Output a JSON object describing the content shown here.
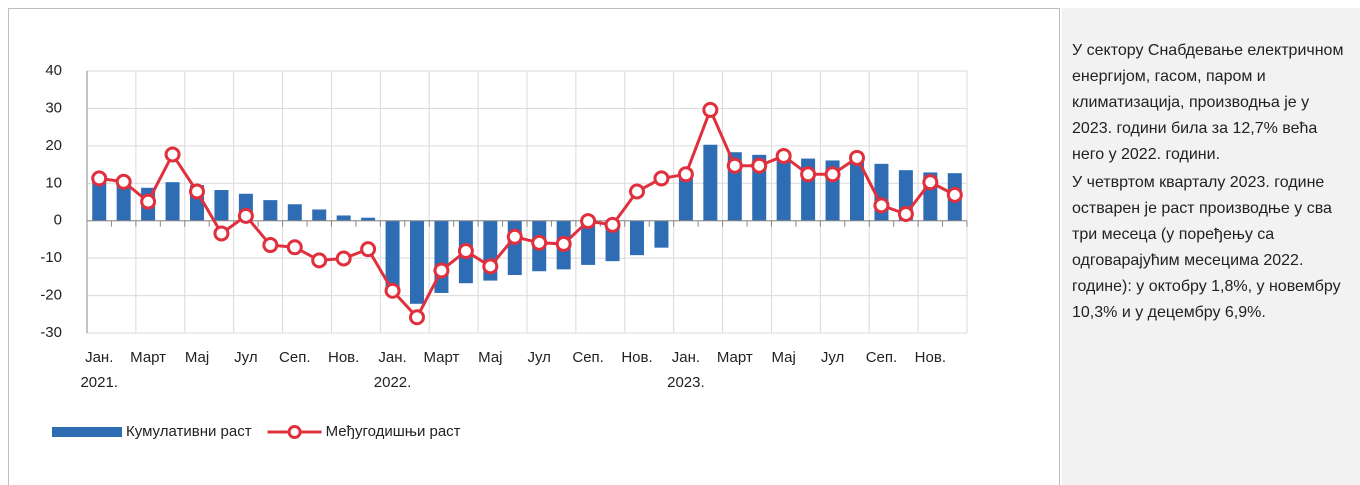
{
  "chart_data": {
    "type": "bar-line",
    "categories": [
      "Јан.",
      null,
      "Март",
      null,
      "Мај",
      null,
      "Јул",
      null,
      "Сеп.",
      null,
      "Нов.",
      null,
      "Јан.",
      null,
      "Март",
      null,
      "Мај",
      null,
      "Јул",
      null,
      "Сеп.",
      null,
      "Нов.",
      null,
      "Јан.",
      null,
      "Март",
      null,
      "Мај",
      null,
      "Јул",
      null,
      "Сеп.",
      null,
      "Нов.",
      null
    ],
    "category_years": [
      "2021.",
      null,
      null,
      null,
      null,
      null,
      null,
      null,
      null,
      null,
      null,
      null,
      "2022.",
      null,
      null,
      null,
      null,
      null,
      null,
      null,
      null,
      null,
      null,
      null,
      "2023.",
      null,
      null,
      null,
      null,
      null,
      null,
      null,
      null,
      null,
      null,
      null
    ],
    "series": [
      {
        "name": "Кумулативни раст",
        "type": "bar",
        "color": "#2e6db4",
        "values": [
          11,
          10.5,
          8.8,
          10.3,
          9.5,
          8.2,
          7.2,
          5.5,
          4.4,
          3.0,
          1.4,
          0.8,
          -18.5,
          -22.2,
          -19.3,
          -16.7,
          -16,
          -14.5,
          -13.5,
          -13,
          -11.8,
          -10.8,
          -9.2,
          -7.2,
          12.4,
          20.3,
          18.3,
          17.6,
          17.5,
          16.6,
          16.1,
          16.2,
          15.2,
          13.5,
          12.9,
          12.7
        ]
      },
      {
        "name": "Међугодишњи раст",
        "type": "line",
        "color": "#e0303e",
        "values": [
          11.3,
          10.4,
          5.1,
          17.7,
          7.8,
          -3.4,
          1.3,
          -6.5,
          -7.1,
          -10.6,
          -10.1,
          -7.6,
          -18.7,
          -25.8,
          -13.3,
          -8.1,
          -12.2,
          -4.3,
          -5.9,
          -6.2,
          -0.1,
          -1.1,
          7.8,
          11.3,
          12.4,
          29.6,
          14.7,
          14.7,
          17.3,
          12.4,
          12.4,
          16.8,
          4.1,
          1.8,
          10.3,
          6.9
        ]
      }
    ],
    "ylim": [
      -30,
      40
    ],
    "yticks": [
      -30,
      -20,
      -10,
      0,
      10,
      20,
      30,
      40
    ],
    "grid": true,
    "legend": "bottom-left"
  },
  "panel": {
    "paragraphs": [
      "У сектору Снабдевање електричном енергијом, гасом, паром и климатизација, производња је у 2023. години била за 12,7% већа него у 2022. години.",
      "У четвртом кварталу 2023. године остварен је раст производње у сва три месеца (у поређењу са одговарајућим месецима 2022. године): у октобру 1,8%, у новембру 10,3% и у децембру 6,9%."
    ]
  }
}
